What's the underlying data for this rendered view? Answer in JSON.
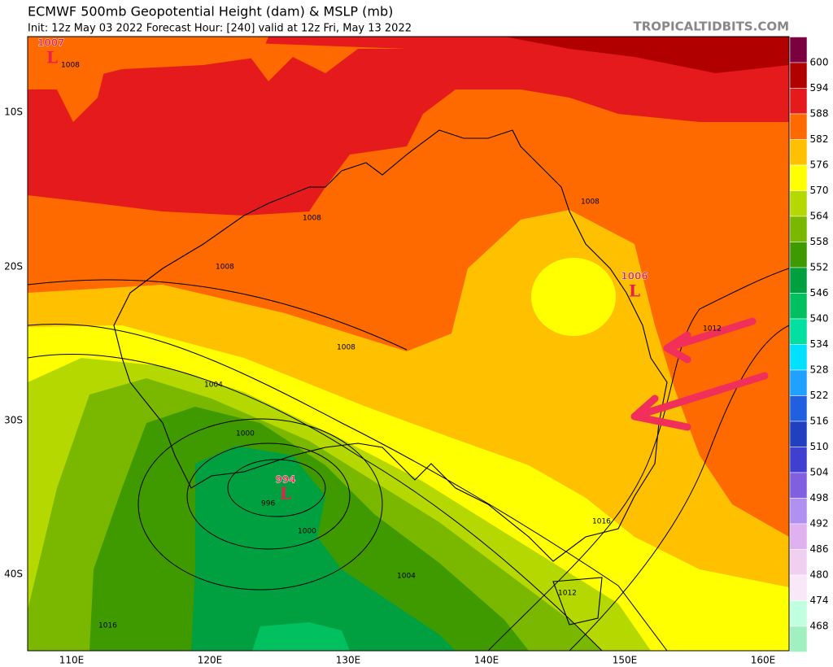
{
  "header": {
    "title": "ECMWF 500mb Geopotential Height (dam) & MSLP (mb)",
    "subtitle": "Init: 12z May 03 2022   Forecast Hour: [240]   valid at 12z Fri, May 13 2022",
    "watermark": "TROPICALTIDBITS.COM"
  },
  "map": {
    "lat_labels": [
      "10S",
      "20S",
      "30S",
      "40S"
    ],
    "lon_labels": [
      "110E",
      "120E",
      "130E",
      "140E",
      "150E",
      "160E"
    ],
    "isobar_labels": [
      1008,
      1008,
      1008,
      1008,
      1008,
      1004,
      1000,
      996,
      1000,
      1004,
      1016,
      1012,
      1016,
      1012
    ],
    "lows": [
      {
        "pressure": 1007,
        "symbol": "L"
      },
      {
        "pressure": 1006,
        "symbol": "L"
      },
      {
        "pressure": 994,
        "symbol": "L"
      }
    ]
  },
  "colorbar": {
    "labels": [
      600,
      594,
      588,
      582,
      576,
      570,
      564,
      558,
      552,
      546,
      540,
      534,
      528,
      522,
      516,
      510,
      504,
      498,
      492,
      486,
      480,
      474,
      468
    ],
    "colors": [
      "#7a0040",
      "#b00000",
      "#e41a1c",
      "#ff6a00",
      "#ffc000",
      "#ffff00",
      "#b5d800",
      "#7ab800",
      "#3f9a00",
      "#00a040",
      "#00c060",
      "#00e0a0",
      "#00e0ff",
      "#20a0ff",
      "#2060e0",
      "#2040c0",
      "#4040d0",
      "#8060e0",
      "#b090f0",
      "#e0b0f0",
      "#f0d0f0",
      "#f8e8f8",
      "#c0ffe0",
      "#a0f0c0"
    ]
  }
}
